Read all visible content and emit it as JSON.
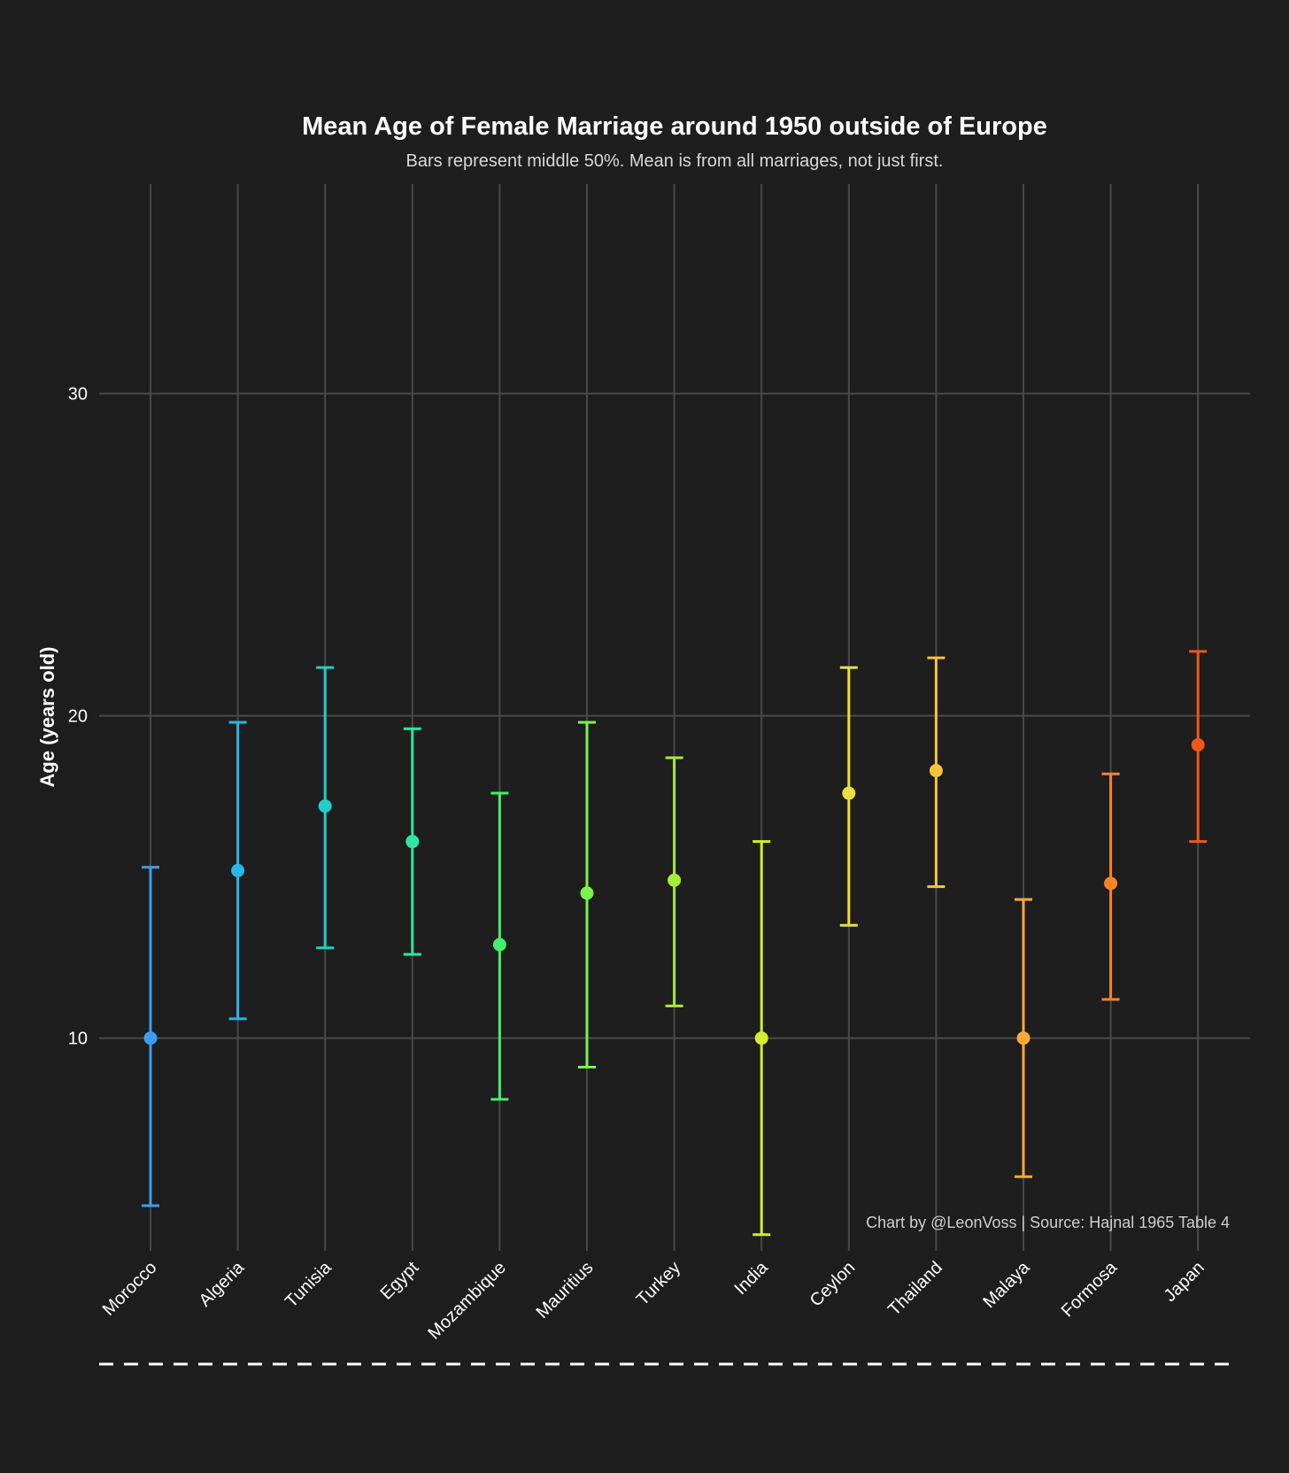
{
  "chart_data": {
    "type": "errorbar",
    "title": "Mean Age of Female Marriage around 1950 outside of Europe",
    "subtitle": "Bars represent middle 50%. Mean is from all marriages, not just first.",
    "ylabel": "Age (years old)",
    "xlabel": "",
    "caption": "Chart by @LeonVoss | Source: Hajnal 1965 Table 4",
    "ylim": [
      3.4,
      36.5
    ],
    "yticks": [
      10,
      20,
      30
    ],
    "grid": true,
    "categories": [
      "Morocco",
      "Algeria",
      "Tunisia",
      "Egypt",
      "Mozambique",
      "Mauritius",
      "Turkey",
      "India",
      "Ceylon",
      "Thailand",
      "Malaya",
      "Formosa",
      "Japan"
    ],
    "mean": [
      10.0,
      15.2,
      17.2,
      16.1,
      12.9,
      14.5,
      14.9,
      10.0,
      17.6,
      18.3,
      10.0,
      14.8,
      19.1
    ],
    "lower": [
      4.8,
      10.6,
      12.8,
      12.6,
      8.1,
      9.1,
      11.0,
      3.9,
      13.5,
      14.7,
      5.7,
      11.2,
      16.1
    ],
    "upper": [
      15.3,
      19.8,
      21.5,
      19.6,
      17.6,
      19.8,
      18.7,
      16.1,
      21.5,
      21.8,
      14.3,
      18.2,
      22.0
    ],
    "colors": [
      "#3d9ef0",
      "#27b6e8",
      "#22cfc8",
      "#2ee6a2",
      "#43ef6e",
      "#7af24e",
      "#a6ec34",
      "#d2ee2e",
      "#e8e040",
      "#f5c43c",
      "#fba83a",
      "#f8842a",
      "#f0581a"
    ]
  }
}
